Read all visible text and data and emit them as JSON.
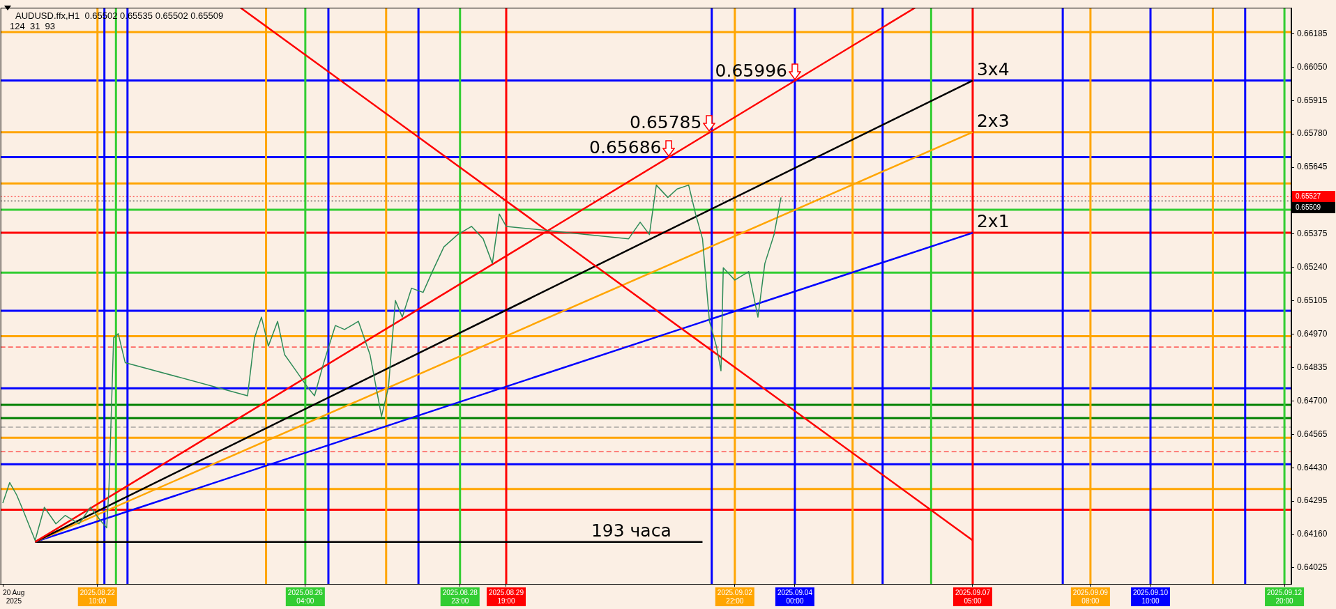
{
  "chart_data": {
    "type": "line",
    "title": "AUDUSD.ffx,H1  0.65502 0.65535 0.65502 0.65509",
    "subtitle": "124  31  93",
    "xlim": [
      "2025-08-20T16:00",
      "2025-09-12T23:00"
    ],
    "xticks": [
      {
        "value": "2025-08-20T17:00",
        "label": "20 Aug 2025"
      },
      {
        "value": "2025-08-22T10:00",
        "label": "2025.08.22 10:00"
      },
      {
        "value": "2025-08-26T04:00",
        "label": "2025.08.26 04:00"
      },
      {
        "value": "2025-08-28T23:00",
        "label": "2025.08.28 23:00"
      },
      {
        "value": "2025-08-29T19:00",
        "label": "2025.08.29 19:00"
      },
      {
        "value": "2025-09-02T22:00",
        "label": "2025.09.02 22:00"
      },
      {
        "value": "2025-09-04T00:00",
        "label": "2025.09.04 00:00"
      },
      {
        "value": "2025-09-07T05:00",
        "label": "2025.09.07 05:00"
      },
      {
        "value": "2025-09-09T08:00",
        "label": "2025.09.09 08:00"
      },
      {
        "value": "2025-09-10T10:00",
        "label": "2025.09.10 10:00"
      },
      {
        "value": "2025-09-12T20:00",
        "label": "2025.09.12 20:00"
      }
    ],
    "ylim": [
      0.6396,
      0.6629
    ],
    "yticks": [
      {
        "value": 0.64025,
        "label": "0.64025"
      },
      {
        "value": 0.6416,
        "label": "0.64160"
      },
      {
        "value": 0.64295,
        "label": "0.64295"
      },
      {
        "value": 0.6443,
        "label": "0.64430"
      },
      {
        "value": 0.64565,
        "label": "0.64565"
      },
      {
        "value": 0.647,
        "label": "0.64700"
      },
      {
        "value": 0.64835,
        "label": "0.64835"
      },
      {
        "value": 0.6497,
        "label": "0.64970"
      },
      {
        "value": 0.65105,
        "label": "0.65105"
      },
      {
        "value": 0.6524,
        "label": "0.65240"
      },
      {
        "value": 0.65375,
        "label": "0.65375"
      },
      {
        "value": 0.65645,
        "label": "0.65645"
      },
      {
        "value": 0.6578,
        "label": "0.65780"
      },
      {
        "value": 0.65915,
        "label": "0.65915"
      },
      {
        "value": 0.6605,
        "label": "0.66050"
      },
      {
        "value": 0.66185,
        "label": "0.66185"
      }
    ],
    "series": [
      {
        "color": "#2e8b57",
        "x": [
          "2025-08-20T17:00",
          "2025-08-20T20:00",
          "2025-08-20T23:00",
          "2025-08-21T02:00",
          "2025-08-21T07:00",
          "2025-08-21T11:00",
          "2025-08-21T16:00",
          "2025-08-21T20:00",
          "2025-08-22T02:00",
          "2025-08-22T07:00",
          "2025-08-22T11:00",
          "2025-08-22T14:00",
          "2025-08-22T15:00",
          "2025-08-22T17:00",
          "2025-08-22T19:00",
          "2025-08-22T22:00",
          "2025-08-25T03:00",
          "2025-08-25T06:00",
          "2025-08-25T09:00",
          "2025-08-25T12:00",
          "2025-08-25T16:00",
          "2025-08-25T19:00",
          "2025-08-26T00:00",
          "2025-08-26T05:00",
          "2025-08-26T08:00",
          "2025-08-26T12:00",
          "2025-08-26T17:00",
          "2025-08-26T21:00",
          "2025-08-27T03:00",
          "2025-08-27T08:00",
          "2025-08-27T13:00",
          "2025-08-27T16:00",
          "2025-08-27T19:00",
          "2025-08-27T22:00",
          "2025-08-28T02:00",
          "2025-08-28T07:00",
          "2025-08-28T11:00",
          "2025-08-28T16:00",
          "2025-08-28T22:00",
          "2025-08-29T04:00",
          "2025-08-29T09:00",
          "2025-08-29T13:00",
          "2025-08-29T16:00",
          "2025-08-29T19:00",
          "2025-09-01T00:00",
          "2025-09-01T05:00",
          "2025-09-01T09:00",
          "2025-09-01T12:00",
          "2025-09-01T17:00",
          "2025-09-01T21:00",
          "2025-09-02T02:00",
          "2025-09-02T05:00",
          "2025-09-02T08:00",
          "2025-09-02T11:00",
          "2025-09-02T14:00",
          "2025-09-02T16:00",
          "2025-09-02T17:00",
          "2025-09-02T22:00",
          "2025-09-03T04:00",
          "2025-09-03T08:00",
          "2025-09-03T11:00",
          "2025-09-03T15:00",
          "2025-09-03T18:00"
        ],
        "values": [
          0.64287,
          0.6437,
          0.6432,
          0.64253,
          0.64136,
          0.6427,
          0.64203,
          0.64237,
          0.64203,
          0.6427,
          0.6422,
          0.64187,
          0.64354,
          0.64955,
          0.64972,
          0.64855,
          0.64721,
          0.64955,
          0.65039,
          0.64922,
          0.65022,
          0.64888,
          0.64822,
          0.64755,
          0.64721,
          0.64855,
          0.65005,
          0.64989,
          0.65022,
          0.64888,
          0.64638,
          0.64755,
          0.65106,
          0.65039,
          0.65156,
          0.65139,
          0.65223,
          0.65323,
          0.65373,
          0.65406,
          0.65356,
          0.65256,
          0.65456,
          0.65406,
          0.65356,
          0.65423,
          0.65373,
          0.65573,
          0.65523,
          0.65557,
          0.65573,
          0.65456,
          0.65356,
          0.65022,
          0.64922,
          0.64822,
          0.65239,
          0.65189,
          0.65223,
          0.65039,
          0.65256,
          0.65373,
          0.65523
        ]
      },
      {
        "type": "line",
        "color": "#ff0000",
        "x": [
          "2025-08-21T07:00",
          "2025-09-06T04:00"
        ],
        "values": [
          0.6413,
          0.6629
        ]
      },
      {
        "type": "line",
        "color": "#ff0000",
        "x": [
          "2025-08-25T00:00",
          "2025-09-07T05:00"
        ],
        "values": [
          0.6629,
          0.64136
        ]
      },
      {
        "type": "line",
        "color": "#000000",
        "x": [
          "2025-08-21T07:00",
          "2025-09-07T05:00"
        ],
        "values": [
          0.6413,
          0.65996
        ]
      },
      {
        "type": "line",
        "color": "#ffa500",
        "x": [
          "2025-08-21T07:00",
          "2025-09-07T05:00"
        ],
        "values": [
          0.6413,
          0.65787
        ]
      },
      {
        "type": "line",
        "color": "#0000ff",
        "x": [
          "2025-08-21T07:00",
          "2025-09-07T05:00"
        ],
        "values": [
          0.6413,
          0.6538
        ]
      },
      {
        "type": "line",
        "color": "#000000",
        "x": [
          "2025-08-21T07:00",
          "2025-09-02T08:00"
        ],
        "values": [
          0.6413,
          0.6413
        ]
      }
    ],
    "ref_lines": [
      {
        "axis": "y",
        "value": 0.66192,
        "color": "#ffa500"
      },
      {
        "axis": "y",
        "value": 0.65996,
        "color": "#0000ff"
      },
      {
        "axis": "y",
        "value": 0.65787,
        "color": "#ffa500"
      },
      {
        "axis": "y",
        "value": 0.65686,
        "color": "#0000ff"
      },
      {
        "axis": "y",
        "value": 0.6558,
        "color": "#ffa500"
      },
      {
        "axis": "y",
        "value": 0.65527,
        "color": "#ff0000",
        "line_style": "dotted",
        "label": "0.65527"
      },
      {
        "axis": "y",
        "value": 0.65509,
        "color": "#000000",
        "line_style": "dotted",
        "label": "0.65509"
      },
      {
        "axis": "y",
        "value": 0.65473,
        "color": "#32cd32"
      },
      {
        "axis": "y",
        "value": 0.6538,
        "color": "#ff0000"
      },
      {
        "axis": "y",
        "value": 0.65219,
        "color": "#32cd32"
      },
      {
        "axis": "y",
        "value": 0.65065,
        "color": "#0000ff"
      },
      {
        "axis": "y",
        "value": 0.64962,
        "color": "#ffa500"
      },
      {
        "axis": "y",
        "value": 0.64918,
        "color": "#ff0000",
        "line_style": "dashed"
      },
      {
        "axis": "y",
        "value": 0.64751,
        "color": "#0000ff"
      },
      {
        "axis": "y",
        "value": 0.64684,
        "color": "#008000"
      },
      {
        "axis": "y",
        "value": 0.64631,
        "color": "#008000"
      },
      {
        "axis": "y",
        "value": 0.64594,
        "color": "#808080",
        "line_style": "dashed"
      },
      {
        "axis": "y",
        "value": 0.64551,
        "color": "#ffa500"
      },
      {
        "axis": "y",
        "value": 0.64494,
        "color": "#ff0000",
        "line_style": "dashed"
      },
      {
        "axis": "y",
        "value": 0.64444,
        "color": "#0000ff"
      },
      {
        "axis": "y",
        "value": 0.64344,
        "color": "#ffa500"
      },
      {
        "axis": "y",
        "value": 0.6426,
        "color": "#ff0000"
      },
      {
        "axis": "x",
        "value": "2025-08-22T10:00",
        "color": "#ffa500"
      },
      {
        "axis": "x",
        "value": "2025-08-22T13:00",
        "color": "#0000ff"
      },
      {
        "axis": "x",
        "value": "2025-08-22T18:00",
        "color": "#32cd32"
      },
      {
        "axis": "x",
        "value": "2025-08-22T23:00",
        "color": "#0000ff"
      },
      {
        "axis": "x",
        "value": "2025-08-25T11:00",
        "color": "#ffa500"
      },
      {
        "axis": "x",
        "value": "2025-08-26T04:00",
        "color": "#32cd32"
      },
      {
        "axis": "x",
        "value": "2025-08-26T14:00",
        "color": "#0000ff"
      },
      {
        "axis": "x",
        "value": "2025-08-27T15:00",
        "color": "#ffa500"
      },
      {
        "axis": "x",
        "value": "2025-08-28T05:00",
        "color": "#0000ff"
      },
      {
        "axis": "x",
        "value": "2025-08-28T23:00",
        "color": "#32cd32"
      },
      {
        "axis": "x",
        "value": "2025-08-29T19:00",
        "color": "#ff0000"
      },
      {
        "axis": "x",
        "value": "2025-09-02T12:00",
        "color": "#0000ff"
      },
      {
        "axis": "x",
        "value": "2025-09-02T22:00",
        "color": "#ffa500"
      },
      {
        "axis": "x",
        "value": "2025-09-04T00:00",
        "color": "#0000ff"
      },
      {
        "axis": "x",
        "value": "2025-09-05T01:00",
        "color": "#ffa500"
      },
      {
        "axis": "x",
        "value": "2025-09-05T14:00",
        "color": "#0000ff"
      },
      {
        "axis": "x",
        "value": "2025-09-06T11:00",
        "color": "#32cd32"
      },
      {
        "axis": "x",
        "value": "2025-09-07T05:00",
        "color": "#ff0000"
      },
      {
        "axis": "x",
        "value": "2025-09-08T20:00",
        "color": "#0000ff"
      },
      {
        "axis": "x",
        "value": "2025-09-09T08:00",
        "color": "#ffa500"
      },
      {
        "axis": "x",
        "value": "2025-09-10T10:00",
        "color": "#0000ff"
      },
      {
        "axis": "x",
        "value": "2025-09-11T13:00",
        "color": "#ffa500"
      },
      {
        "axis": "x",
        "value": "2025-09-12T03:00",
        "color": "#0000ff"
      },
      {
        "axis": "x",
        "value": "2025-09-12T20:00",
        "color": "#32cd32"
      }
    ],
    "annotations": [
      {
        "text": "0.65996",
        "x": "2025-09-04T00:00",
        "y": 0.65996
      },
      {
        "text": "0.65785",
        "x": "2025-09-02T11:00",
        "y": 0.65785
      },
      {
        "text": "0.65686",
        "x": "2025-09-01T17:30",
        "y": 0.65686
      },
      {
        "text": "3x4",
        "x": "2025-09-07T05:00",
        "y": 0.65996
      },
      {
        "text": "2x3",
        "x": "2025-09-07T05:00",
        "y": 0.65787
      },
      {
        "text": "2x1",
        "x": "2025-09-07T05:00",
        "y": 0.6538
      },
      {
        "text": "193 часа",
        "x": "2025-08-31T06:00",
        "y": 0.6413
      }
    ]
  }
}
